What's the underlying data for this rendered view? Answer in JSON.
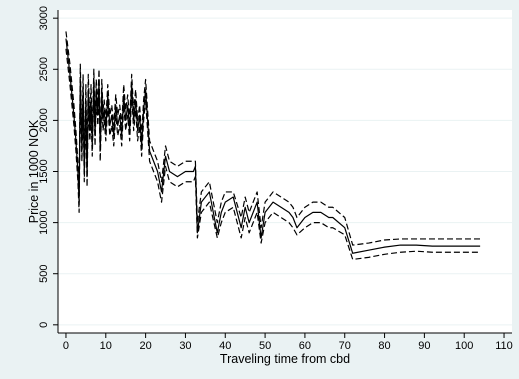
{
  "chart_data": {
    "type": "line",
    "xlabel": "Traveling time from cbd",
    "ylabel": "Price in 1000 NOK",
    "xlim": [
      -2,
      112
    ],
    "ylim": [
      -80,
      3080
    ],
    "xticks": [
      0,
      10,
      20,
      30,
      40,
      50,
      60,
      70,
      80,
      90,
      100,
      110
    ],
    "yticks": [
      0,
      500,
      1000,
      1500,
      2000,
      2500,
      3000
    ],
    "grid": true,
    "legend": "none",
    "colors": {
      "plot_bg": "#ffffff",
      "outer_bg": "#eaf2f3",
      "grid": "#eaf2f3",
      "line": "#000000"
    },
    "series": [
      {
        "style": "solid",
        "x": [
          0,
          1,
          2,
          2.5,
          3,
          3.3,
          3.6,
          4,
          4.3,
          4.6,
          5,
          5.3,
          5.6,
          6,
          6.3,
          6.6,
          7,
          7.3,
          7.6,
          8,
          8.3,
          8.6,
          9,
          9.3,
          9.6,
          10,
          10.5,
          11,
          11.5,
          12,
          12.5,
          13,
          13.5,
          14,
          14.5,
          15,
          15.5,
          16,
          16.5,
          17,
          17.5,
          18,
          18.5,
          19,
          19.5,
          20,
          21,
          22,
          23,
          24,
          25,
          26,
          28,
          30,
          32,
          32.5,
          33,
          34,
          36,
          38,
          39,
          40,
          42,
          44,
          45,
          46,
          48,
          49,
          50,
          52,
          54,
          56,
          57,
          58,
          60,
          62,
          64,
          66,
          67,
          70,
          72,
          76,
          80,
          84,
          88,
          92,
          96,
          100,
          104
        ],
        "y": [
          2800,
          2450,
          2050,
          1800,
          1500,
          1200,
          2400,
          1700,
          2300,
          1500,
          2200,
          1450,
          2300,
          1900,
          2200,
          1750,
          2400,
          1850,
          2300,
          2050,
          2400,
          1700,
          2300,
          2000,
          2100,
          1900,
          2250,
          1950,
          2050,
          1850,
          2150,
          1950,
          2050,
          1850,
          2250,
          2000,
          2150,
          1900,
          2350,
          2000,
          2200,
          1900,
          2050,
          1750,
          2100,
          2300,
          1700,
          1600,
          1500,
          1300,
          1650,
          1500,
          1450,
          1500,
          1500,
          1550,
          900,
          1200,
          1300,
          900,
          1100,
          1200,
          1250,
          950,
          1150,
          1000,
          1200,
          850,
          1100,
          1200,
          1150,
          1100,
          1050,
          950,
          1050,
          1100,
          1100,
          1050,
          1050,
          950,
          700,
          730,
          760,
          780,
          780,
          770,
          770,
          770,
          770
        ]
      },
      {
        "style": "dash",
        "x": [
          0,
          1,
          2,
          2.5,
          3,
          3.3,
          3.6,
          4,
          4.3,
          4.6,
          5,
          5.3,
          5.6,
          6,
          6.3,
          6.6,
          7,
          7.3,
          7.6,
          8,
          8.3,
          8.6,
          9,
          9.3,
          9.6,
          10,
          10.5,
          11,
          11.5,
          12,
          12.5,
          13,
          13.5,
          14,
          14.5,
          15,
          15.5,
          16,
          16.5,
          17,
          17.5,
          18,
          18.5,
          19,
          19.5,
          20,
          21,
          22,
          23,
          24,
          25,
          26,
          28,
          30,
          32,
          32.5,
          33,
          34,
          36,
          38,
          39,
          40,
          42,
          44,
          45,
          46,
          48,
          49,
          50,
          52,
          54,
          56,
          57,
          58,
          60,
          62,
          64,
          66,
          67,
          70,
          72,
          76,
          80,
          84,
          88,
          92,
          96,
          100,
          104
        ],
        "y": [
          2870,
          2550,
          2150,
          1900,
          1600,
          1300,
          2550,
          1800,
          2450,
          1600,
          2350,
          1550,
          2450,
          2000,
          2350,
          1850,
          2500,
          1950,
          2400,
          2150,
          2500,
          1800,
          2400,
          2100,
          2200,
          2000,
          2350,
          2050,
          2150,
          1950,
          2250,
          2050,
          2150,
          1950,
          2350,
          2100,
          2250,
          2000,
          2450,
          2100,
          2300,
          2000,
          2150,
          1850,
          2200,
          2400,
          1800,
          1700,
          1600,
          1400,
          1750,
          1600,
          1550,
          1600,
          1600,
          1600,
          1000,
          1300,
          1400,
          1000,
          1200,
          1300,
          1300,
          1050,
          1250,
          1100,
          1300,
          950,
          1200,
          1300,
          1250,
          1200,
          1150,
          1050,
          1150,
          1200,
          1200,
          1150,
          1150,
          1050,
          780,
          800,
          830,
          840,
          840,
          840,
          840,
          840,
          840
        ]
      },
      {
        "style": "dash",
        "x": [
          0,
          1,
          2,
          2.5,
          3,
          3.3,
          3.6,
          4,
          4.3,
          4.6,
          5,
          5.3,
          5.6,
          6,
          6.3,
          6.6,
          7,
          7.3,
          7.6,
          8,
          8.3,
          8.6,
          9,
          9.3,
          9.6,
          10,
          10.5,
          11,
          11.5,
          12,
          12.5,
          13,
          13.5,
          14,
          14.5,
          15,
          15.5,
          16,
          16.5,
          17,
          17.5,
          18,
          18.5,
          19,
          19.5,
          20,
          21,
          22,
          23,
          24,
          25,
          26,
          28,
          30,
          32,
          32.5,
          33,
          34,
          36,
          38,
          39,
          40,
          42,
          44,
          45,
          46,
          48,
          49,
          50,
          52,
          54,
          56,
          57,
          58,
          60,
          62,
          64,
          66,
          67,
          70,
          72,
          76,
          80,
          84,
          88,
          92,
          96,
          100,
          104
        ],
        "y": [
          2700,
          2350,
          1950,
          1700,
          1400,
          1100,
          2250,
          1600,
          2150,
          1400,
          2050,
          1350,
          2150,
          1800,
          2050,
          1650,
          2300,
          1750,
          2200,
          1950,
          2300,
          1600,
          2200,
          1900,
          2000,
          1800,
          2150,
          1850,
          1950,
          1750,
          2050,
          1850,
          1950,
          1750,
          2150,
          1900,
          2050,
          1800,
          2250,
          1900,
          2100,
          1800,
          1950,
          1650,
          2000,
          2200,
          1600,
          1500,
          1400,
          1200,
          1550,
          1400,
          1350,
          1400,
          1400,
          1450,
          850,
          1100,
          1200,
          850,
          1000,
          1100,
          1150,
          850,
          1050,
          900,
          1100,
          800,
          1000,
          1100,
          1050,
          1000,
          950,
          880,
          950,
          1000,
          1000,
          950,
          950,
          880,
          640,
          660,
          690,
          710,
          720,
          710,
          710,
          710,
          710
        ]
      }
    ]
  }
}
